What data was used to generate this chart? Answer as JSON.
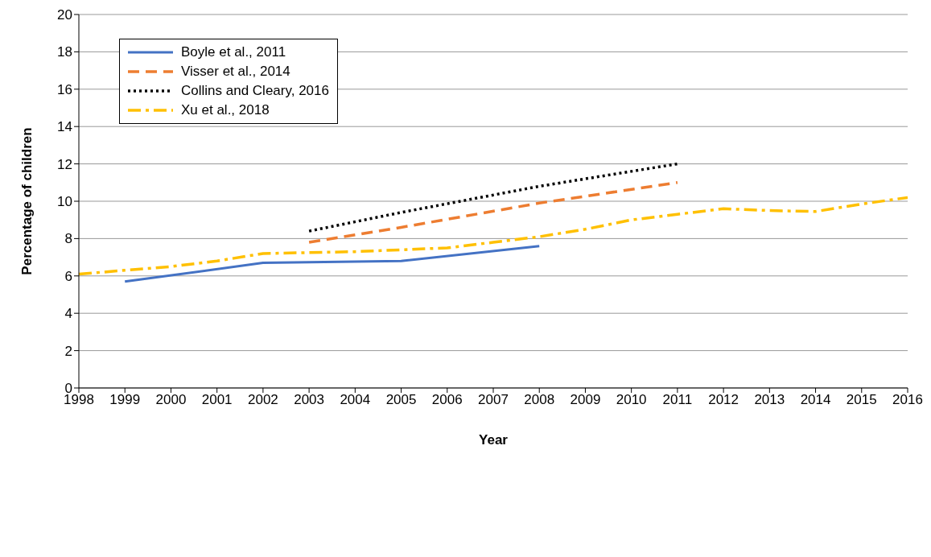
{
  "chart_data": {
    "type": "line",
    "xlabel": "Year",
    "ylabel": "Percentage of children",
    "xlim": [
      1998,
      2016
    ],
    "xticks": [
      1998,
      1999,
      2000,
      2001,
      2002,
      2003,
      2004,
      2005,
      2006,
      2007,
      2008,
      2009,
      2010,
      2011,
      2012,
      2013,
      2014,
      2015,
      2016
    ],
    "ylim": [
      0,
      20
    ],
    "yticks": [
      0,
      2,
      4,
      6,
      8,
      10,
      12,
      14,
      16,
      18,
      20
    ],
    "grid": "y",
    "legend": "top left",
    "marker": "none",
    "series": [
      {
        "name": "Boyle et al., 2011",
        "color": "#4472c4",
        "line_style": "solid",
        "x": [
          1999,
          2002,
          2005,
          2008
        ],
        "values": [
          5.7,
          6.7,
          6.8,
          7.6
        ]
      },
      {
        "name": "Visser et al., 2014",
        "color": "#ed7d31",
        "line_style": "dashed",
        "x": [
          2003,
          2005,
          2008,
          2011
        ],
        "values": [
          7.8,
          8.6,
          9.9,
          11.0
        ]
      },
      {
        "name": "Collins and Cleary, 2016",
        "color": "#000000",
        "line_style": "dotted",
        "x": [
          2003,
          2005,
          2008,
          2011
        ],
        "values": [
          8.4,
          9.4,
          10.8,
          12.0
        ]
      },
      {
        "name": "Xu et al., 2018",
        "color": "#ffc000",
        "line_style": "dashdot",
        "x": [
          1998,
          1999,
          2000,
          2001,
          2002,
          2003,
          2004,
          2005,
          2006,
          2007,
          2008,
          2009,
          2010,
          2011,
          2012,
          2013,
          2014,
          2015,
          2016
        ],
        "values": [
          6.1,
          6.3,
          6.5,
          6.8,
          7.2,
          7.25,
          7.3,
          7.4,
          7.5,
          7.8,
          8.1,
          8.5,
          9.0,
          9.3,
          9.6,
          9.5,
          9.45,
          9.85,
          10.2
        ]
      }
    ]
  }
}
